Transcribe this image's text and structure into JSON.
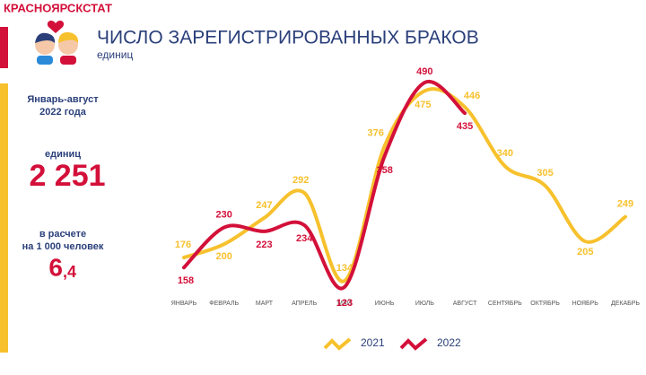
{
  "header": {
    "org": "КРАСНОЯРСКСТАТ"
  },
  "side_panel": {
    "period_lines": [
      "Январь-август",
      "2022 года"
    ],
    "unit": "единиц",
    "total": "2 251",
    "rate_lines": [
      "в расчете",
      "на 1 000 человек"
    ],
    "rate_int": "6",
    "rate_dec": ",4"
  },
  "chart_data": {
    "type": "line",
    "title": "ЧИСЛО ЗАРЕГИСТРИРОВАННЫХ БРАКОВ",
    "subtitle": "единиц",
    "categories": [
      "ЯНВАРЬ",
      "ФЕВРАЛЬ",
      "МАРТ",
      "АПРЕЛЬ",
      "МАЙ",
      "ИЮНЬ",
      "ИЮЛЬ",
      "АВГУСТ",
      "СЕНТЯБРЬ",
      "ОКТЯБРЬ",
      "НОЯБРЬ",
      "ДЕКАБРЬ"
    ],
    "series": [
      {
        "name": "2021",
        "color": "#f7c12d",
        "values": [
          176,
          200,
          247,
          292,
          134,
          376,
          475,
          446,
          340,
          305,
          205,
          249
        ]
      },
      {
        "name": "2022",
        "color": "#d3103a",
        "values": [
          158,
          230,
          223,
          234,
          123,
          358,
          490,
          435,
          null,
          null,
          null,
          null
        ]
      }
    ]
  }
}
